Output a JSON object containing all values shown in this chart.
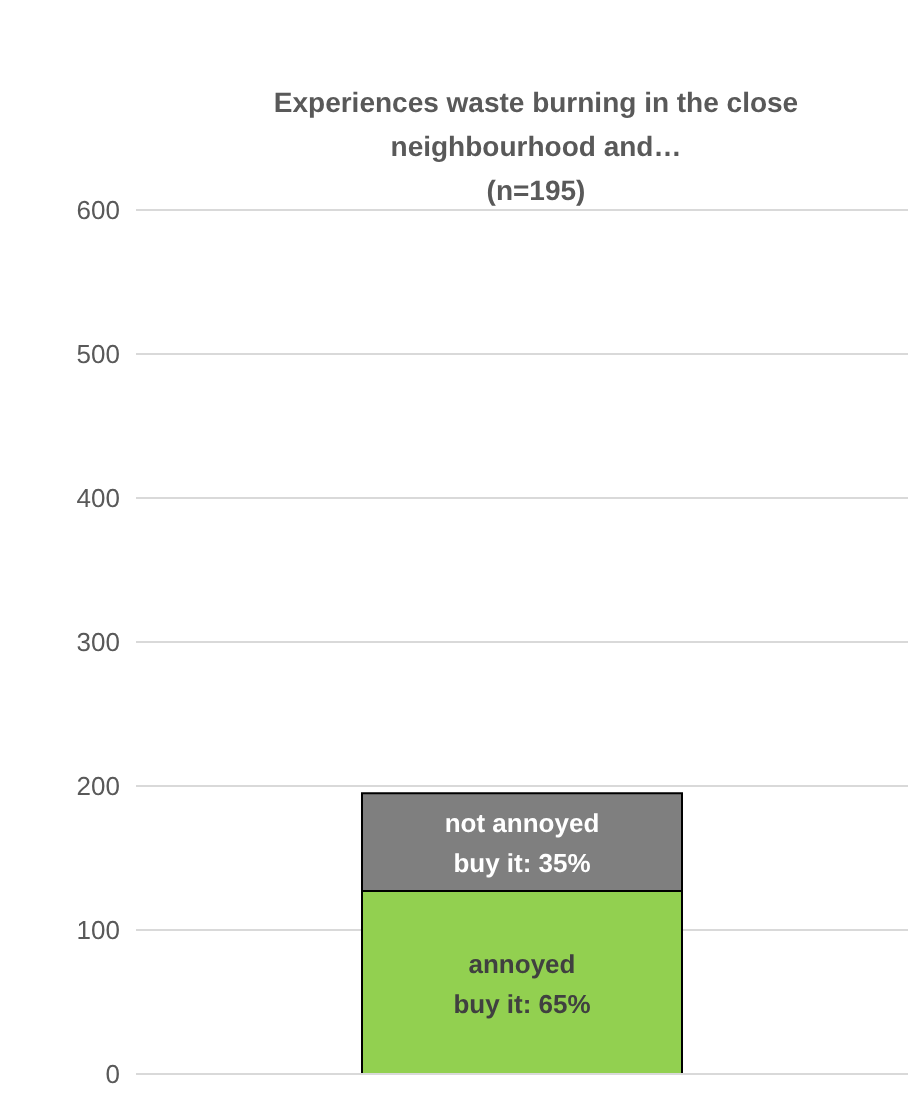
{
  "chart_data": {
    "type": "bar",
    "title": "Experiences waste burning in the close neighbourhood and…",
    "subtitle": "(n=195)",
    "categories": [
      null
    ],
    "stacked": true,
    "grid": "y",
    "legend": false,
    "ylim": [
      0,
      600
    ],
    "yticks": [
      0,
      100,
      200,
      300,
      400,
      500,
      600
    ],
    "series": [
      {
        "name": "annoyed",
        "color": "#92d050",
        "values": [
          127
        ]
      },
      {
        "name": "not annoyed",
        "color": "#7f7f7f",
        "values": [
          68
        ]
      }
    ],
    "annotations": [
      "buy it: 65%",
      "buy it: 35%"
    ]
  }
}
